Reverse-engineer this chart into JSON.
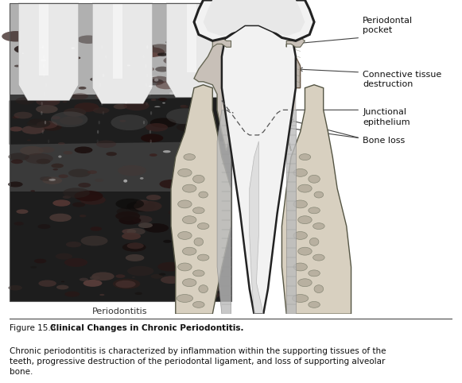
{
  "figure_number": "Figure 15.3.",
  "bold_title": "Clinical Changes in Chronic Periodontitis.",
  "caption_text": " Chronic periodontitis is characterized by inflammation within the supporting tissues of the teeth, progressive destruction of the periodontal ligament, and loss of supporting alveolar bone.",
  "label_periodontitis": "Periodontitis",
  "label_periodontal_pocket": "Periodontal\npocket",
  "label_connective_tissue": "Connective tissue\ndestruction",
  "label_junctional": "Junctional\nepithelium",
  "label_bone_loss": "Bone loss",
  "bg_color": "#ffffff",
  "caption_font_size": 7.5,
  "label_font_size": 8.0,
  "fig_width": 5.81,
  "fig_height": 4.82,
  "dpi": 100
}
